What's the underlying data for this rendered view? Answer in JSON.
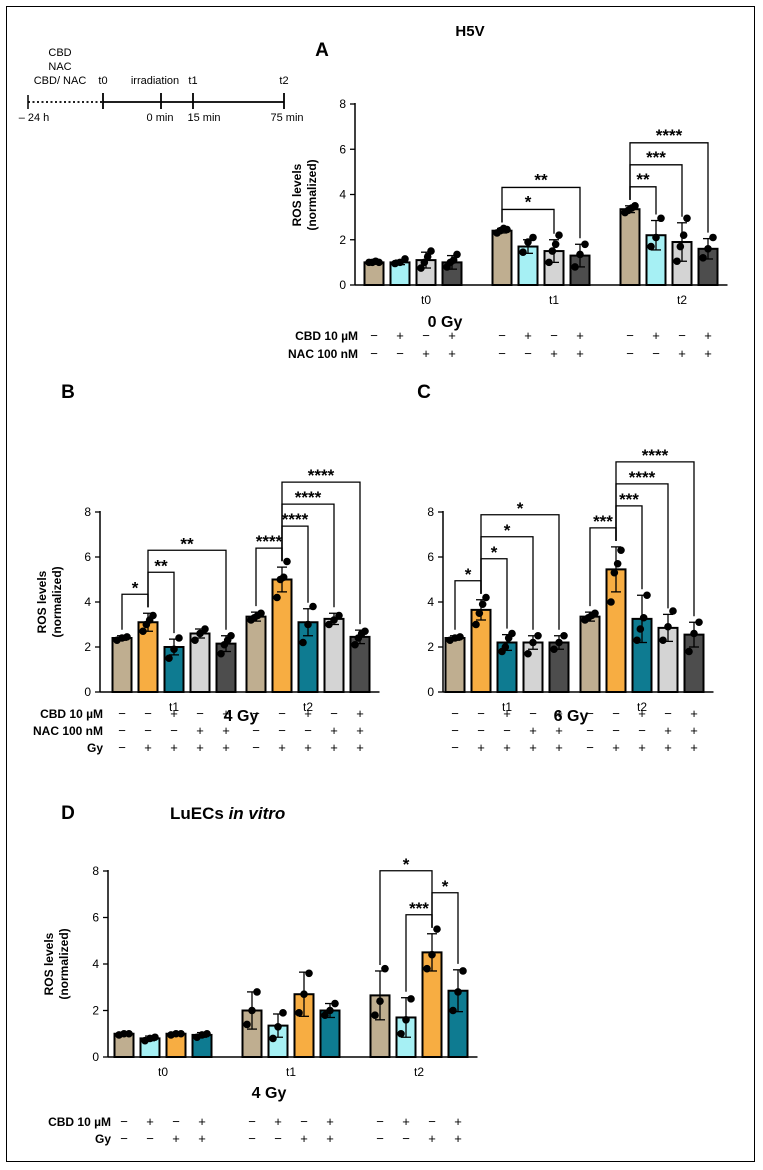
{
  "figure": {
    "timeline": {
      "pre_labels": [
        "CBD",
        "NAC",
        "CBD/ NAC"
      ],
      "events": [
        "t0",
        "irradiation",
        "t1",
        "t2"
      ],
      "times": [
        "– 24 h",
        "0 min",
        "15 min",
        "75 min"
      ]
    }
  },
  "chart_data": [
    {
      "panel": "A",
      "type": "bar",
      "title": "H5V",
      "xlabel": "0 Gy",
      "ylabel": "ROS levels (normalized)",
      "ylim": [
        0,
        8
      ],
      "yticks": [
        0,
        2,
        4,
        6,
        8
      ],
      "groups": [
        "t0",
        "t1",
        "t2"
      ],
      "bar_labels": [
        "",
        "",
        "",
        ""
      ],
      "bar_colors": [
        "#bfae90",
        "#a6f0f4",
        "#d4d4d4",
        "#4d4d4d"
      ],
      "values": [
        [
          1.0,
          1.0,
          1.1,
          1.0
        ],
        [
          2.4,
          1.7,
          1.5,
          1.3
        ],
        [
          3.35,
          2.2,
          1.9,
          1.6
        ]
      ],
      "errors": [
        [
          0.05,
          0.1,
          0.35,
          0.3
        ],
        [
          0.1,
          0.3,
          0.5,
          0.5
        ],
        [
          0.15,
          0.65,
          0.85,
          0.45
        ]
      ],
      "points": [
        [
          [
            1.0,
            1.0,
            1.05,
            1.0
          ],
          [
            0.95,
            1.0,
            1.15
          ],
          [
            0.75,
            1.0,
            1.25,
            1.5
          ],
          [
            0.8,
            1.0,
            1.1,
            1.35
          ]
        ],
        [
          [
            2.3,
            2.4,
            2.5,
            2.45
          ],
          [
            1.45,
            1.9,
            2.1
          ],
          [
            1.0,
            1.5,
            1.8,
            2.2
          ],
          [
            0.8,
            1.35,
            1.8
          ]
        ],
        [
          [
            3.2,
            3.3,
            3.4,
            3.5
          ],
          [
            1.7,
            2.1,
            2.95
          ],
          [
            1.05,
            1.7,
            2.2,
            2.95
          ],
          [
            1.2,
            1.6,
            2.1
          ]
        ]
      ],
      "significance": [
        {
          "from": [
            1,
            0
          ],
          "to": [
            1,
            2
          ],
          "label": "*"
        },
        {
          "from": [
            1,
            0
          ],
          "to": [
            1,
            3
          ],
          "label": "**"
        },
        {
          "from": [
            2,
            0
          ],
          "to": [
            2,
            1
          ],
          "label": "**"
        },
        {
          "from": [
            2,
            0
          ],
          "to": [
            2,
            2
          ],
          "label": "***"
        },
        {
          "from": [
            2,
            0
          ],
          "to": [
            2,
            3
          ],
          "label": "****"
        }
      ],
      "table": [
        {
          "label": "CBD 10 µM",
          "rows": [
            [
              "−",
              "+",
              "−",
              "+"
            ],
            [
              "−",
              "+",
              "−",
              "+"
            ],
            [
              "−",
              "+",
              "−",
              "+"
            ]
          ]
        },
        {
          "label": "NAC 100 nM",
          "rows": [
            [
              "−",
              "−",
              "+",
              "+"
            ],
            [
              "−",
              "−",
              "+",
              "+"
            ],
            [
              "−",
              "−",
              "+",
              "+"
            ]
          ]
        }
      ]
    },
    {
      "panel": "B",
      "type": "bar",
      "title": "",
      "xlabel": "4 Gy",
      "ylabel": "ROS levels (normalized)",
      "ylim": [
        0,
        8
      ],
      "yticks": [
        0,
        2,
        4,
        6,
        8
      ],
      "groups": [
        "t1",
        "t2"
      ],
      "bar_colors": [
        "#bfae90",
        "#f7ad42",
        "#0e7b91",
        "#d4d4d4",
        "#4d4d4d"
      ],
      "values": [
        [
          2.4,
          3.1,
          2.0,
          2.6,
          2.15
        ],
        [
          3.35,
          5.0,
          3.1,
          3.25,
          2.45
        ]
      ],
      "errors": [
        [
          0.1,
          0.4,
          0.35,
          0.2,
          0.35
        ],
        [
          0.2,
          0.55,
          0.6,
          0.25,
          0.3
        ]
      ],
      "points": [
        [
          [
            2.3,
            2.4,
            2.45
          ],
          [
            2.7,
            3.0,
            3.2,
            3.4
          ],
          [
            1.5,
            1.9,
            2.4
          ],
          [
            2.3,
            2.6,
            2.8
          ],
          [
            1.7,
            2.1,
            2.3,
            2.5
          ]
        ],
        [
          [
            3.2,
            3.3,
            3.4,
            3.5
          ],
          [
            4.2,
            5.0,
            5.1,
            5.8
          ],
          [
            2.2,
            3.0,
            3.8
          ],
          [
            3.0,
            3.2,
            3.4
          ],
          [
            2.1,
            2.4,
            2.6,
            2.7
          ]
        ]
      ],
      "significance": [
        {
          "from": [
            0,
            0
          ],
          "to": [
            0,
            1
          ],
          "label": "*"
        },
        {
          "from": [
            0,
            1
          ],
          "to": [
            0,
            2
          ],
          "label": "**"
        },
        {
          "from": [
            0,
            1
          ],
          "to": [
            0,
            4
          ],
          "label": "**"
        },
        {
          "from": [
            1,
            0
          ],
          "to": [
            1,
            1
          ],
          "label": "****"
        },
        {
          "from": [
            1,
            1
          ],
          "to": [
            1,
            2
          ],
          "label": "****"
        },
        {
          "from": [
            1,
            1
          ],
          "to": [
            1,
            3
          ],
          "label": "****"
        },
        {
          "from": [
            1,
            1
          ],
          "to": [
            1,
            4
          ],
          "label": "****"
        }
      ],
      "table": [
        {
          "label": "CBD 10 µM",
          "rows": [
            [
              "−",
              "−",
              "+",
              "−",
              "+"
            ],
            [
              "−",
              "−",
              "+",
              "−",
              "+"
            ]
          ]
        },
        {
          "label": "NAC 100 nM",
          "rows": [
            [
              "−",
              "−",
              "−",
              "+",
              "+"
            ],
            [
              "−",
              "−",
              "−",
              "+",
              "+"
            ]
          ]
        },
        {
          "label": "Gy",
          "rows": [
            [
              "−",
              "+",
              "+",
              "+",
              "+"
            ],
            [
              "−",
              "+",
              "+",
              "+",
              "+"
            ]
          ]
        }
      ]
    },
    {
      "panel": "C",
      "type": "bar",
      "title": "",
      "xlabel": "6 Gy",
      "ylabel": "",
      "ylim": [
        0,
        8
      ],
      "yticks": [
        0,
        2,
        4,
        6,
        8
      ],
      "groups": [
        "t1",
        "t2"
      ],
      "bar_colors": [
        "#bfae90",
        "#f7ad42",
        "#0e7b91",
        "#d4d4d4",
        "#4d4d4d"
      ],
      "values": [
        [
          2.4,
          3.65,
          2.2,
          2.2,
          2.2
        ],
        [
          3.35,
          5.45,
          3.25,
          2.85,
          2.55
        ]
      ],
      "errors": [
        [
          0.1,
          0.45,
          0.35,
          0.3,
          0.3
        ],
        [
          0.2,
          1.0,
          1.05,
          0.6,
          0.55
        ]
      ],
      "points": [
        [
          [
            2.3,
            2.4,
            2.45
          ],
          [
            3.0,
            3.5,
            3.9,
            4.2
          ],
          [
            1.8,
            2.0,
            2.4,
            2.6
          ],
          [
            1.7,
            2.2,
            2.5
          ],
          [
            1.9,
            2.2,
            2.5
          ]
        ],
        [
          [
            3.2,
            3.3,
            3.4,
            3.5
          ],
          [
            4.0,
            5.3,
            5.7,
            6.3
          ],
          [
            2.3,
            2.8,
            3.3,
            4.3
          ],
          [
            2.3,
            2.9,
            3.6
          ],
          [
            1.8,
            2.6,
            3.1
          ]
        ]
      ],
      "significance": [
        {
          "from": [
            0,
            0
          ],
          "to": [
            0,
            1
          ],
          "label": "*"
        },
        {
          "from": [
            0,
            1
          ],
          "to": [
            0,
            2
          ],
          "label": "*"
        },
        {
          "from": [
            0,
            1
          ],
          "to": [
            0,
            3
          ],
          "label": "*"
        },
        {
          "from": [
            0,
            1
          ],
          "to": [
            0,
            4
          ],
          "label": "*"
        },
        {
          "from": [
            1,
            0
          ],
          "to": [
            1,
            1
          ],
          "label": "***"
        },
        {
          "from": [
            1,
            1
          ],
          "to": [
            1,
            2
          ],
          "label": "***"
        },
        {
          "from": [
            1,
            1
          ],
          "to": [
            1,
            3
          ],
          "label": "****"
        },
        {
          "from": [
            1,
            1
          ],
          "to": [
            1,
            4
          ],
          "label": "****"
        }
      ],
      "table": [
        {
          "label": "",
          "rows": [
            [
              "−",
              "−",
              "+",
              "−",
              "+"
            ],
            [
              "−",
              "−",
              "+",
              "−",
              "+"
            ]
          ]
        },
        {
          "label": "",
          "rows": [
            [
              "−",
              "−",
              "−",
              "+",
              "+"
            ],
            [
              "−",
              "−",
              "−",
              "+",
              "+"
            ]
          ]
        },
        {
          "label": "",
          "rows": [
            [
              "−",
              "+",
              "+",
              "+",
              "+"
            ],
            [
              "−",
              "+",
              "+",
              "+",
              "+"
            ]
          ]
        }
      ]
    },
    {
      "panel": "D",
      "type": "bar",
      "title": "LuECs",
      "title_italic": "in vitro",
      "xlabel": "4 Gy",
      "ylabel": "ROS levels (normalized)",
      "ylim": [
        0,
        8
      ],
      "yticks": [
        0,
        2,
        4,
        6,
        8
      ],
      "groups": [
        "t0",
        "t1",
        "t2"
      ],
      "bar_colors": [
        "#bfae90",
        "#a6f0f4",
        "#f7ad42",
        "#0e7b91"
      ],
      "values": [
        [
          1.0,
          0.8,
          1.0,
          0.95
        ],
        [
          2.0,
          1.35,
          2.7,
          2.0
        ],
        [
          2.65,
          1.7,
          4.5,
          2.85
        ]
      ],
      "errors": [
        [
          0.05,
          0.1,
          0.05,
          0.1
        ],
        [
          0.8,
          0.5,
          0.95,
          0.3
        ],
        [
          1.05,
          0.85,
          0.8,
          0.9
        ]
      ],
      "points": [
        [
          [
            0.95,
            1.0,
            1.0
          ],
          [
            0.7,
            0.8,
            0.85
          ],
          [
            0.95,
            1.0,
            1.0
          ],
          [
            0.85,
            0.95,
            1.0
          ]
        ],
        [
          [
            1.4,
            2.0,
            2.8
          ],
          [
            0.8,
            1.3,
            1.9
          ],
          [
            1.9,
            2.7,
            3.6
          ],
          [
            1.8,
            2.0,
            2.3
          ]
        ],
        [
          [
            1.8,
            2.4,
            3.8
          ],
          [
            1.0,
            1.6,
            2.5
          ],
          [
            3.8,
            4.4,
            5.5
          ],
          [
            2.0,
            2.8,
            3.7
          ]
        ]
      ],
      "significance": [
        {
          "from": [
            2,
            0
          ],
          "to": [
            2,
            2
          ],
          "label": "*"
        },
        {
          "from": [
            2,
            1
          ],
          "to": [
            2,
            2
          ],
          "label": "***"
        },
        {
          "from": [
            2,
            2
          ],
          "to": [
            2,
            3
          ],
          "label": "*"
        }
      ],
      "table": [
        {
          "label": "CBD 10 µM",
          "rows": [
            [
              "−",
              "+",
              "−",
              "+"
            ],
            [
              "−",
              "+",
              "−",
              "+"
            ],
            [
              "−",
              "+",
              "−",
              "+"
            ]
          ]
        },
        {
          "label": "Gy",
          "rows": [
            [
              "−",
              "−",
              "+",
              "+"
            ],
            [
              "−",
              "−",
              "+",
              "+"
            ],
            [
              "−",
              "−",
              "+",
              "+"
            ]
          ]
        }
      ]
    }
  ]
}
